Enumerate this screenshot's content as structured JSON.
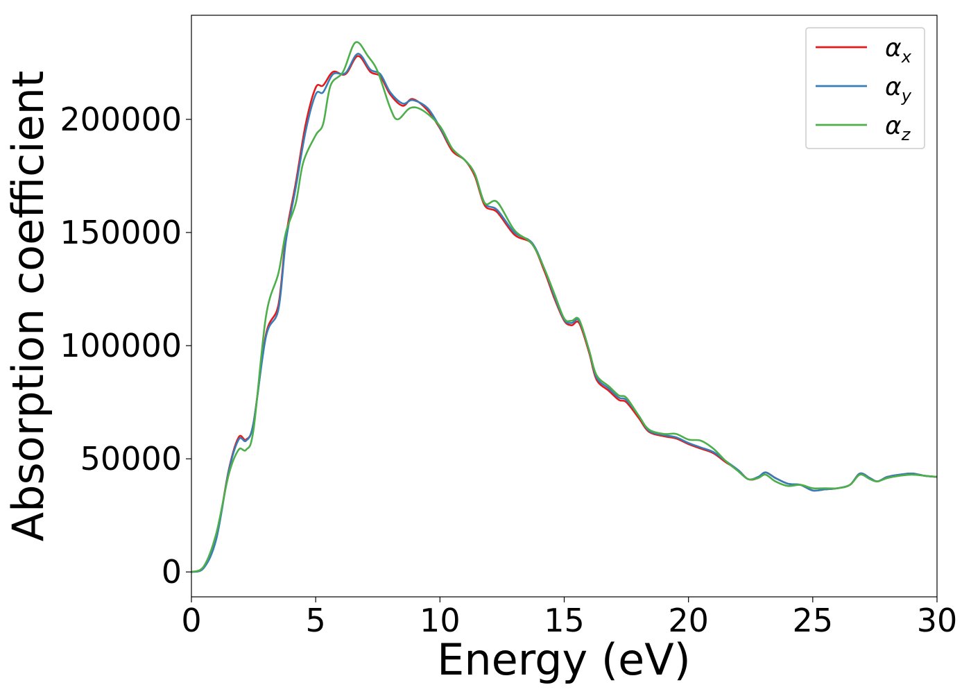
{
  "chart_data": {
    "type": "line",
    "title": "",
    "xlabel": "Energy (eV)",
    "ylabel": "Absorption coefficient",
    "xlim": [
      0,
      30
    ],
    "ylim": [
      -11000,
      246000
    ],
    "xticks": [
      0,
      5,
      10,
      15,
      20,
      25,
      30
    ],
    "yticks": [
      0,
      50000,
      100000,
      150000,
      200000
    ],
    "grid": false,
    "legend_position": "top-right",
    "series": [
      {
        "name": "α",
        "subscript": "x",
        "color": "#e41a1c",
        "points": [
          [
            0,
            0
          ],
          [
            0.5,
            2000
          ],
          [
            1,
            15000
          ],
          [
            1.5,
            45000
          ],
          [
            1.9,
            59500
          ],
          [
            2.2,
            58500
          ],
          [
            2.5,
            66000
          ],
          [
            3,
            105000
          ],
          [
            3.5,
            118000
          ],
          [
            3.8,
            148000
          ],
          [
            4.2,
            172000
          ],
          [
            4.6,
            198000
          ],
          [
            5,
            214000
          ],
          [
            5.3,
            215000
          ],
          [
            5.7,
            221000
          ],
          [
            6.2,
            220000
          ],
          [
            6.7,
            228000
          ],
          [
            7.2,
            221000
          ],
          [
            7.6,
            219000
          ],
          [
            8,
            211000
          ],
          [
            8.5,
            206000
          ],
          [
            8.9,
            209000
          ],
          [
            9.5,
            204000
          ],
          [
            10,
            196000
          ],
          [
            10.5,
            186000
          ],
          [
            11,
            182000
          ],
          [
            11.4,
            175000
          ],
          [
            11.8,
            162000
          ],
          [
            12.3,
            159000
          ],
          [
            13,
            149000
          ],
          [
            13.7,
            145000
          ],
          [
            14.2,
            133000
          ],
          [
            14.6,
            121000
          ],
          [
            15,
            111000
          ],
          [
            15.3,
            109000
          ],
          [
            15.6,
            110000
          ],
          [
            16,
            97000
          ],
          [
            16.3,
            85000
          ],
          [
            16.8,
            80000
          ],
          [
            17.2,
            76000
          ],
          [
            17.5,
            75000
          ],
          [
            18,
            68000
          ],
          [
            18.4,
            62000
          ],
          [
            19,
            60000
          ],
          [
            19.5,
            59000
          ],
          [
            20,
            56500
          ],
          [
            20.5,
            54500
          ],
          [
            21,
            52500
          ],
          [
            21.5,
            48500
          ],
          [
            22,
            45000
          ],
          [
            22.4,
            41000
          ],
          [
            22.8,
            41500
          ],
          [
            23.1,
            44000
          ],
          [
            23.5,
            41500
          ],
          [
            24,
            39000
          ],
          [
            24.5,
            38500
          ],
          [
            25,
            36000
          ],
          [
            25.5,
            36500
          ],
          [
            26,
            37000
          ],
          [
            26.5,
            38500
          ],
          [
            26.9,
            43500
          ],
          [
            27.3,
            41500
          ],
          [
            27.6,
            40000
          ],
          [
            28,
            42000
          ],
          [
            28.5,
            43000
          ],
          [
            29,
            43500
          ],
          [
            29.5,
            42500
          ],
          [
            30,
            42000
          ]
        ]
      },
      {
        "name": "α",
        "subscript": "y",
        "color": "#377eb8",
        "points": [
          [
            0,
            0
          ],
          [
            0.5,
            1800
          ],
          [
            1,
            14500
          ],
          [
            1.5,
            44500
          ],
          [
            1.9,
            58500
          ],
          [
            2.2,
            58000
          ],
          [
            2.5,
            66000
          ],
          [
            3,
            104000
          ],
          [
            3.5,
            116000
          ],
          [
            3.8,
            146000
          ],
          [
            4.2,
            170000
          ],
          [
            4.6,
            195000
          ],
          [
            5,
            211000
          ],
          [
            5.3,
            212000
          ],
          [
            5.7,
            220000
          ],
          [
            6.2,
            220500
          ],
          [
            6.7,
            229000
          ],
          [
            7.2,
            222000
          ],
          [
            7.6,
            220000
          ],
          [
            8,
            212000
          ],
          [
            8.5,
            207000
          ],
          [
            8.9,
            208500
          ],
          [
            9.5,
            205000
          ],
          [
            10,
            196500
          ],
          [
            10.5,
            187000
          ],
          [
            11,
            182000
          ],
          [
            11.4,
            176000
          ],
          [
            11.8,
            163000
          ],
          [
            12.3,
            160000
          ],
          [
            13,
            150000
          ],
          [
            13.7,
            145500
          ],
          [
            14.2,
            134000
          ],
          [
            14.6,
            122000
          ],
          [
            15,
            111500
          ],
          [
            15.3,
            110000
          ],
          [
            15.6,
            111000
          ],
          [
            16,
            98000
          ],
          [
            16.3,
            86000
          ],
          [
            16.8,
            81000
          ],
          [
            17.2,
            77000
          ],
          [
            17.5,
            76000
          ],
          [
            18,
            69000
          ],
          [
            18.4,
            62500
          ],
          [
            19,
            60500
          ],
          [
            19.5,
            59500
          ],
          [
            20,
            57000
          ],
          [
            20.5,
            55000
          ],
          [
            21,
            53000
          ],
          [
            21.5,
            49000
          ],
          [
            22,
            45000
          ],
          [
            22.4,
            41000
          ],
          [
            22.8,
            42000
          ],
          [
            23.1,
            44000
          ],
          [
            23.5,
            41500
          ],
          [
            24,
            39000
          ],
          [
            24.5,
            38500
          ],
          [
            25,
            36000
          ],
          [
            25.5,
            36500
          ],
          [
            26,
            37000
          ],
          [
            26.5,
            38500
          ],
          [
            26.9,
            43500
          ],
          [
            27.3,
            41500
          ],
          [
            27.6,
            40000
          ],
          [
            28,
            42000
          ],
          [
            28.5,
            43000
          ],
          [
            29,
            43500
          ],
          [
            29.5,
            42500
          ],
          [
            30,
            42000
          ]
        ]
      },
      {
        "name": "α",
        "subscript": "z",
        "color": "#4daf4a",
        "points": [
          [
            0,
            0
          ],
          [
            0.5,
            2500
          ],
          [
            1,
            17000
          ],
          [
            1.5,
            43000
          ],
          [
            1.9,
            54000
          ],
          [
            2.2,
            54000
          ],
          [
            2.5,
            63000
          ],
          [
            3,
            113000
          ],
          [
            3.5,
            132000
          ],
          [
            3.8,
            150000
          ],
          [
            4.2,
            163000
          ],
          [
            4.5,
            181000
          ],
          [
            5,
            193000
          ],
          [
            5.3,
            198000
          ],
          [
            5.6,
            215000
          ],
          [
            6.1,
            221000
          ],
          [
            6.6,
            234000
          ],
          [
            7.1,
            228000
          ],
          [
            7.5,
            221000
          ],
          [
            8,
            205000
          ],
          [
            8.3,
            200000
          ],
          [
            8.8,
            205000
          ],
          [
            9.3,
            204000
          ],
          [
            10,
            197000
          ],
          [
            10.5,
            187000
          ],
          [
            11,
            182000
          ],
          [
            11.4,
            176000
          ],
          [
            11.8,
            163000
          ],
          [
            12.3,
            163500
          ],
          [
            13,
            151000
          ],
          [
            13.7,
            145000
          ],
          [
            14.2,
            134000
          ],
          [
            14.6,
            123000
          ],
          [
            15,
            112000
          ],
          [
            15.3,
            111000
          ],
          [
            15.6,
            111500
          ],
          [
            16,
            98000
          ],
          [
            16.3,
            87000
          ],
          [
            16.8,
            82000
          ],
          [
            17.2,
            78000
          ],
          [
            17.5,
            77000
          ],
          [
            18,
            69000
          ],
          [
            18.4,
            63000
          ],
          [
            19,
            61000
          ],
          [
            19.5,
            61000
          ],
          [
            20,
            58500
          ],
          [
            20.5,
            58000
          ],
          [
            21,
            54500
          ],
          [
            21.5,
            49000
          ],
          [
            22,
            44500
          ],
          [
            22.4,
            41000
          ],
          [
            22.8,
            41500
          ],
          [
            23.1,
            43000
          ],
          [
            23.5,
            40000
          ],
          [
            24,
            38000
          ],
          [
            24.5,
            38500
          ],
          [
            25,
            37000
          ],
          [
            25.5,
            37000
          ],
          [
            26,
            37000
          ],
          [
            26.5,
            38500
          ],
          [
            26.9,
            43000
          ],
          [
            27.3,
            41000
          ],
          [
            27.6,
            40000
          ],
          [
            28,
            41500
          ],
          [
            28.5,
            42500
          ],
          [
            29,
            43000
          ],
          [
            29.5,
            42500
          ],
          [
            30,
            42000
          ]
        ]
      }
    ]
  }
}
